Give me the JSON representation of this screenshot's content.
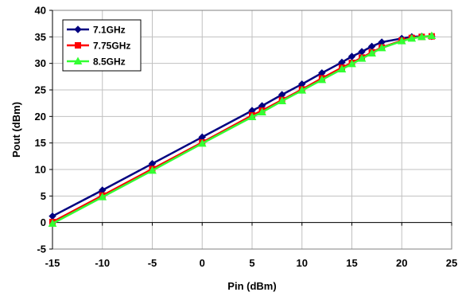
{
  "chart_data": {
    "type": "line",
    "title": "",
    "xlabel": "Pin (dBm)",
    "ylabel": "Pout (dBm)",
    "xlim": [
      -15,
      25
    ],
    "ylim": [
      -5,
      40
    ],
    "xticks": [
      -15,
      -10,
      -5,
      0,
      5,
      10,
      15,
      20,
      25
    ],
    "yticks": [
      -5,
      0,
      5,
      10,
      15,
      20,
      25,
      30,
      35,
      40
    ],
    "xtick_labels": [
      "-15",
      "-10",
      "-5",
      "0",
      "5",
      "10",
      "15",
      "20",
      "25"
    ],
    "ytick_labels": [
      "-5",
      "0",
      "5",
      "10",
      "15",
      "20",
      "25",
      "30",
      "35",
      "40"
    ],
    "grid": true,
    "legend_position": "top-left",
    "series": [
      {
        "name": "7.1GHz",
        "color": "#000080",
        "marker": "diamond",
        "points": [
          [
            -15,
            1.2
          ],
          [
            -10,
            6.1
          ],
          [
            -5,
            11.1
          ],
          [
            0,
            16.1
          ],
          [
            5,
            21.1
          ],
          [
            6,
            22.0
          ],
          [
            8,
            24.1
          ],
          [
            10,
            26.1
          ],
          [
            12,
            28.2
          ],
          [
            14,
            30.2
          ],
          [
            15,
            31.3
          ],
          [
            16,
            32.2
          ],
          [
            17,
            33.2
          ],
          [
            18,
            34.0
          ],
          [
            20,
            34.7
          ],
          [
            21,
            35.0
          ],
          [
            22,
            35.1
          ],
          [
            23,
            35.1
          ]
        ]
      },
      {
        "name": "7.75GHz",
        "color": "#ff0000",
        "marker": "square",
        "points": [
          [
            -15,
            0.1
          ],
          [
            -10,
            5.1
          ],
          [
            -5,
            10.1
          ],
          [
            0,
            15.1
          ],
          [
            5,
            20.2
          ],
          [
            6,
            21.1
          ],
          [
            8,
            23.1
          ],
          [
            10,
            25.1
          ],
          [
            12,
            27.2
          ],
          [
            14,
            29.2
          ],
          [
            15,
            30.1
          ],
          [
            16,
            31.1
          ],
          [
            17,
            32.1
          ],
          [
            18,
            33.0
          ],
          [
            20,
            34.3
          ],
          [
            21,
            34.8
          ],
          [
            22,
            35.0
          ],
          [
            23,
            35.1
          ]
        ]
      },
      {
        "name": "8.5GHz",
        "color": "#33ff33",
        "marker": "triangle",
        "points": [
          [
            -15,
            -0.2
          ],
          [
            -10,
            4.8
          ],
          [
            -5,
            9.8
          ],
          [
            0,
            14.9
          ],
          [
            5,
            19.9
          ],
          [
            6,
            20.8
          ],
          [
            8,
            22.9
          ],
          [
            10,
            24.9
          ],
          [
            12,
            26.9
          ],
          [
            14,
            28.9
          ],
          [
            15,
            29.9
          ],
          [
            16,
            30.9
          ],
          [
            17,
            31.9
          ],
          [
            18,
            32.9
          ],
          [
            20,
            34.2
          ],
          [
            21,
            34.7
          ],
          [
            22,
            35.0
          ],
          [
            23,
            35.2
          ]
        ]
      }
    ]
  }
}
